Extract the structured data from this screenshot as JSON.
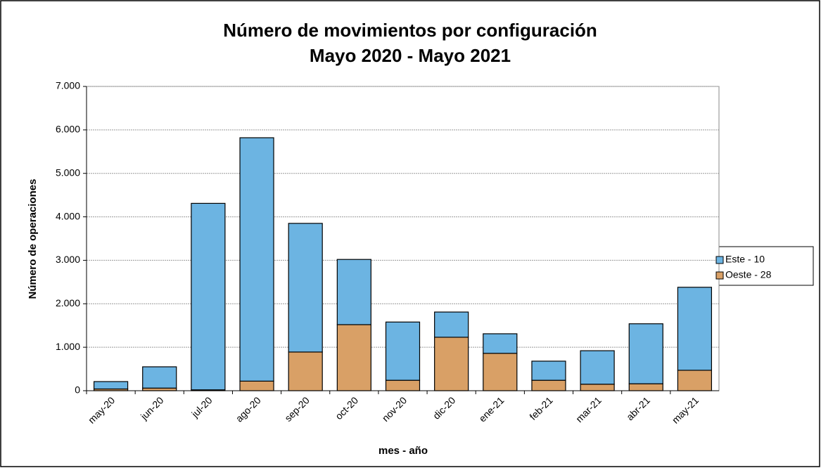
{
  "chart_data": {
    "type": "bar",
    "stacked": true,
    "title": "Número de movimientos por configuración",
    "subtitle": "Mayo 2020 - Mayo 2021",
    "x_label": "mes - año",
    "y_label": "Número de operaciones",
    "categories": [
      "may-20",
      "jun-20",
      "jul-20",
      "ago-20",
      "sep-20",
      "oct-20",
      "nov-20",
      "dic-20",
      "ene-21",
      "feb-21",
      "mar-21",
      "abr-21",
      "may-21"
    ],
    "series": [
      {
        "name": "Este - 10",
        "color": "#6cb4e2",
        "values": [
          170,
          490,
          4290,
          5600,
          2960,
          1500,
          1340,
          580,
          450,
          440,
          770,
          1380,
          1910
        ]
      },
      {
        "name": "Oeste - 28",
        "color": "#d9a066",
        "values": [
          40,
          60,
          20,
          220,
          890,
          1520,
          240,
          1230,
          860,
          240,
          150,
          160,
          470
        ]
      }
    ],
    "ylim": [
      0,
      7000
    ],
    "yticks": [
      0,
      {
        "value": 1000,
        "label": "1.000"
      },
      {
        "value": 2000,
        "label": "2.000"
      },
      {
        "value": 3000,
        "label": "3.000"
      },
      {
        "value": 4000,
        "label": "4.000"
      },
      {
        "value": 5000,
        "label": "5.000"
      },
      {
        "value": 6000,
        "label": "6.000"
      },
      {
        "value": 7000,
        "label": "7.000"
      }
    ],
    "grid": true,
    "legend": "right"
  }
}
